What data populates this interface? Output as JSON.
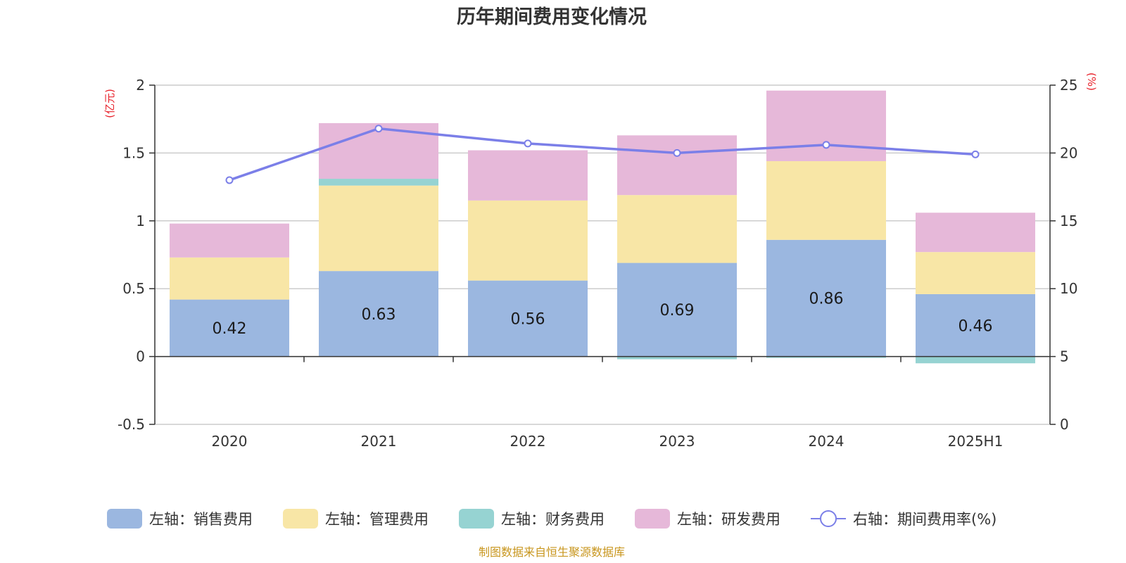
{
  "chart_data": {
    "type": "bar",
    "title": "历年期间费用变化情况",
    "categories": [
      "2020",
      "2021",
      "2022",
      "2023",
      "2024",
      "2025H1"
    ],
    "y_left": {
      "unit": "(亿元)",
      "range": [
        -0.5,
        2
      ],
      "ticks": [
        "-0.5",
        "0",
        "0.5",
        "1",
        "1.5",
        "2"
      ]
    },
    "y_right": {
      "unit": "(%)",
      "range": [
        0,
        25
      ],
      "ticks": [
        "0",
        "5",
        "10",
        "15",
        "20",
        "25"
      ]
    },
    "series": [
      {
        "name": "左轴：销售费用",
        "kind": "bar",
        "color": "#9bb7e0",
        "values": [
          0.42,
          0.63,
          0.56,
          0.69,
          0.86,
          0.46
        ],
        "labels": [
          "0.42",
          "0.63",
          "0.56",
          "0.69",
          "0.86",
          "0.46"
        ]
      },
      {
        "name": "左轴：管理费用",
        "kind": "bar",
        "color": "#f8e6a6",
        "values": [
          0.31,
          0.63,
          0.59,
          0.5,
          0.58,
          0.31
        ]
      },
      {
        "name": "左轴：财务费用",
        "kind": "bar",
        "color": "#96d3d2",
        "values": [
          0,
          0.05,
          0,
          -0.02,
          -0.01,
          -0.05
        ]
      },
      {
        "name": "左轴：研发费用",
        "kind": "bar",
        "color": "#e6b8d9",
        "values": [
          0.25,
          0.41,
          0.37,
          0.44,
          0.52,
          0.29
        ]
      },
      {
        "name": "右轴：期间费用率(%)",
        "kind": "line",
        "color": "#7b7fe8",
        "values": [
          18.0,
          21.8,
          20.7,
          20.0,
          20.6,
          19.9
        ]
      }
    ],
    "grid": true,
    "legend_position": "bottom"
  },
  "source": "制图数据来自恒生聚源数据库"
}
